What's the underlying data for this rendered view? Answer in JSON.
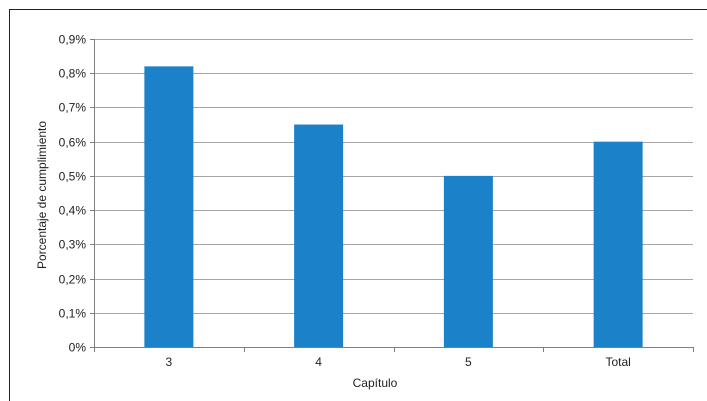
{
  "chart_data": {
    "type": "bar",
    "categories": [
      "3",
      "4",
      "5",
      "Total"
    ],
    "values": [
      0.82,
      0.65,
      0.5,
      0.6
    ],
    "ylim": [
      0,
      0.9
    ],
    "yticks": [
      0,
      0.1,
      0.2,
      0.3,
      0.4,
      0.5,
      0.6,
      0.7,
      0.8,
      0.9
    ],
    "ytick_labels": [
      "0%",
      "0,1%",
      "0,2%",
      "0,3%",
      "0,4%",
      "0,5%",
      "0,6%",
      "0,7%",
      "0,8%",
      "0,9%"
    ],
    "xlabel": "Capítulo",
    "ylabel": "Porcentaje de cumplimiento",
    "grid": true,
    "legend": "none",
    "colors": {
      "bar": "#1b81c8",
      "grid": "#a6a6a6",
      "axis": "#7f7f7f"
    }
  }
}
